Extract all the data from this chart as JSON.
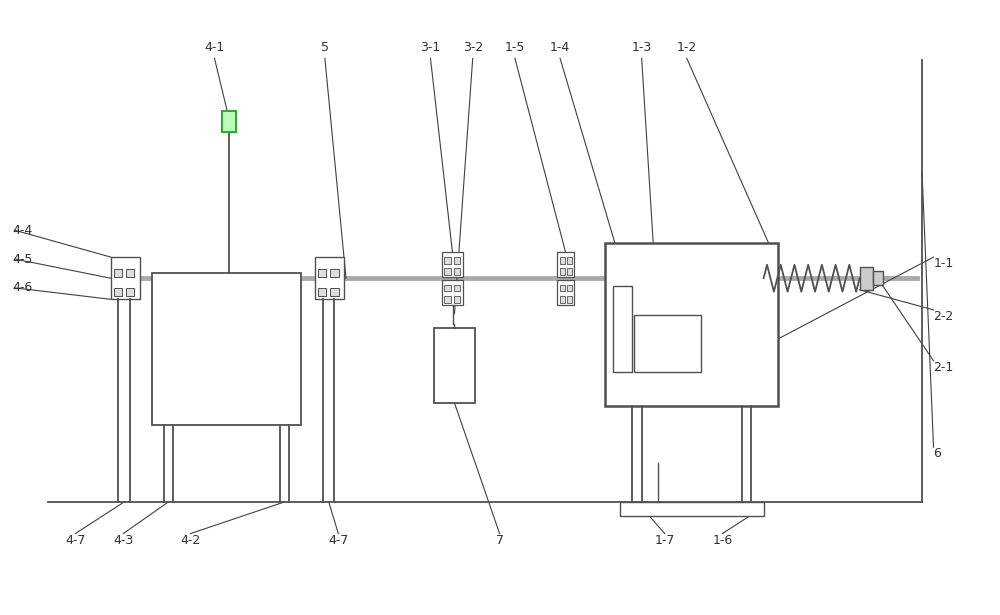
{
  "bg_color": "#ffffff",
  "lc": "#505050",
  "lc_gray": "#909090",
  "lc_green": "#44aa44",
  "figsize": [
    10.0,
    6.15
  ],
  "dpi": 100
}
